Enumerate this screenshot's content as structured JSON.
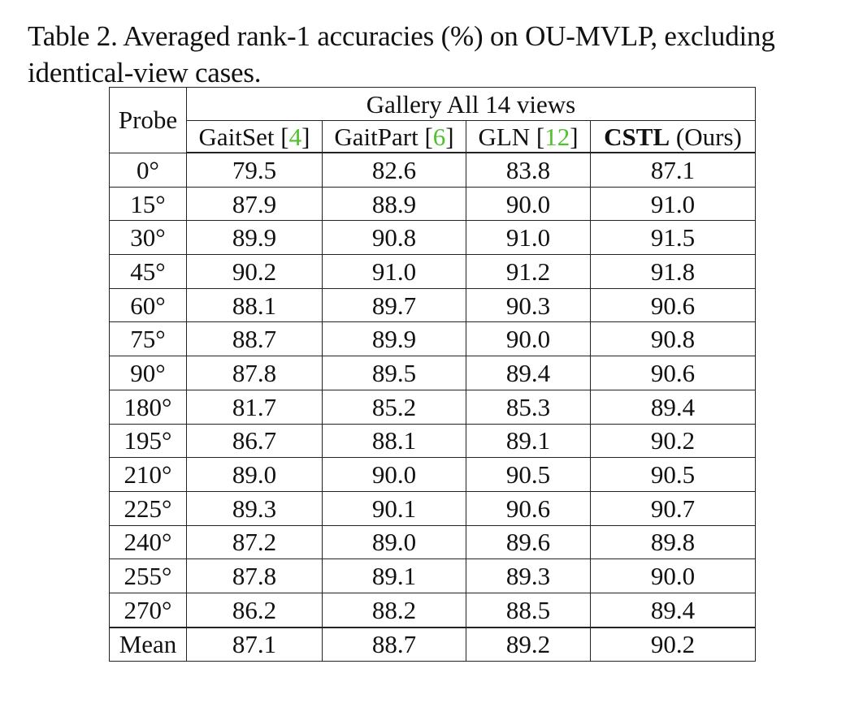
{
  "caption": {
    "line1": "Table 2. Averaged rank-1 accuracies (%) on OU-MVLP, excluding",
    "line2": "identical-view cases."
  },
  "table": {
    "probe_header": "Probe",
    "gallery_header": "Gallery All 14 views",
    "methods": [
      {
        "name": "GaitSet",
        "ref": "4"
      },
      {
        "name": "GaitPart",
        "ref": "6"
      },
      {
        "name": "GLN",
        "ref": "12"
      },
      {
        "name": "CSTL",
        "suffix": "(Ours)"
      }
    ],
    "rows": [
      {
        "probe": "0°",
        "values": [
          "79.5",
          "82.6",
          "83.8",
          "87.1"
        ]
      },
      {
        "probe": "15°",
        "values": [
          "87.9",
          "88.9",
          "90.0",
          "91.0"
        ]
      },
      {
        "probe": "30°",
        "values": [
          "89.9",
          "90.8",
          "91.0",
          "91.5"
        ]
      },
      {
        "probe": "45°",
        "values": [
          "90.2",
          "91.0",
          "91.2",
          "91.8"
        ]
      },
      {
        "probe": "60°",
        "values": [
          "88.1",
          "89.7",
          "90.3",
          "90.6"
        ]
      },
      {
        "probe": "75°",
        "values": [
          "88.7",
          "89.9",
          "90.0",
          "90.8"
        ]
      },
      {
        "probe": "90°",
        "values": [
          "87.8",
          "89.5",
          "89.4",
          "90.6"
        ]
      },
      {
        "probe": "180°",
        "values": [
          "81.7",
          "85.2",
          "85.3",
          "89.4"
        ]
      },
      {
        "probe": "195°",
        "values": [
          "86.7",
          "88.1",
          "89.1",
          "90.2"
        ]
      },
      {
        "probe": "210°",
        "values": [
          "89.0",
          "90.0",
          "90.5",
          "90.5"
        ]
      },
      {
        "probe": "225°",
        "values": [
          "89.3",
          "90.1",
          "90.6",
          "90.7"
        ]
      },
      {
        "probe": "240°",
        "values": [
          "87.2",
          "89.0",
          "89.6",
          "89.8"
        ]
      },
      {
        "probe": "255°",
        "values": [
          "87.8",
          "89.1",
          "89.3",
          "90.0"
        ]
      },
      {
        "probe": "270°",
        "values": [
          "86.2",
          "88.2",
          "88.5",
          "89.4"
        ]
      },
      {
        "probe": "Mean",
        "values": [
          "87.1",
          "88.7",
          "89.2",
          "90.2"
        ]
      }
    ]
  },
  "colors": {
    "citation": "#4fc12b",
    "text": "#111111"
  }
}
